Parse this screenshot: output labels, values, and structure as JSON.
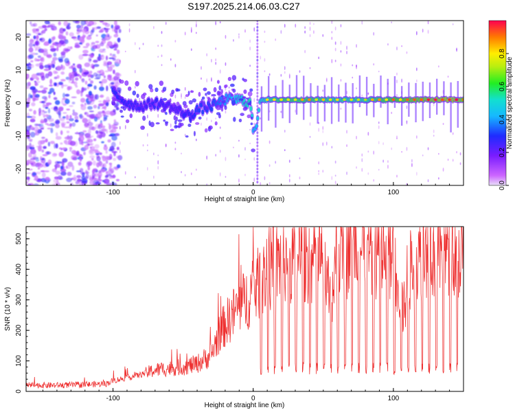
{
  "page": {
    "title": "S197.2025.214.06.03.C27"
  },
  "colors": {
    "snr_line": "#ee3030",
    "frame": "#000000"
  },
  "chart_data": [
    {
      "type": "heatmap",
      "title": "S197.2025.214.06.03.C27",
      "xlabel": "Height of straight line (km)",
      "ylabel": "Frequency (Hz)",
      "xlim": [
        -162,
        150
      ],
      "ylim": [
        -25,
        25
      ],
      "xticks": [
        -100,
        0,
        100
      ],
      "yticks": [
        -20,
        -10,
        0,
        10,
        20
      ],
      "colorbar": {
        "label": "Normalized spectral amplitude",
        "range": [
          0,
          1
        ],
        "ticks": [
          0.0,
          0.2,
          0.4,
          0.6,
          0.8
        ],
        "colormap": "rainbow (magenta-blue-cyan-green-yellow-red)"
      },
      "ridge": {
        "description": "dominant spectral ridge (frequency vs height)",
        "x": [
          -100,
          -90,
          -80,
          -70,
          -60,
          -50,
          -45,
          -40,
          -30,
          -20,
          -10,
          -2,
          0,
          2,
          5,
          20,
          40,
          60,
          80,
          100,
          120,
          140,
          150
        ],
        "y": [
          3,
          0,
          -1,
          0,
          -1,
          -3,
          -4,
          -2,
          -1,
          1,
          1,
          0,
          -8,
          -8,
          1,
          1,
          1,
          1,
          1,
          1,
          1,
          1,
          1
        ],
        "amplitude": [
          0.45,
          0.4,
          0.35,
          0.4,
          0.35,
          0.35,
          0.4,
          0.45,
          0.45,
          0.55,
          0.65,
          0.75,
          0.6,
          0.6,
          0.7,
          0.8,
          0.8,
          0.75,
          0.75,
          0.85,
          0.9,
          0.95,
          0.9
        ]
      }
    },
    {
      "type": "line",
      "title": "",
      "xlabel": "Height of straight line (km)",
      "ylabel": "SNR (10 * v/v)",
      "xlim": [
        -162,
        150
      ],
      "ylim": [
        0,
        540
      ],
      "xticks": [
        -100,
        0,
        100
      ],
      "yticks": [
        0,
        100,
        200,
        300,
        400,
        500
      ],
      "series": [
        {
          "x": [
            -162,
            -140,
            -120,
            -105,
            -100,
            -90,
            -80,
            -70,
            -60,
            -50,
            -40,
            -30,
            -25,
            -20,
            -15,
            -10,
            -5,
            0,
            5,
            10,
            20,
            30,
            40,
            50,
            55,
            60,
            70,
            80,
            90,
            100,
            102,
            105,
            108,
            110,
            120,
            130,
            140,
            150
          ],
          "y": [
            20,
            20,
            22,
            25,
            35,
            45,
            55,
            70,
            75,
            80,
            90,
            120,
            180,
            220,
            250,
            280,
            300,
            330,
            360,
            390,
            430,
            440,
            440,
            420,
            300,
            460,
            460,
            460,
            460,
            440,
            350,
            260,
            280,
            380,
            450,
            460,
            460,
            460
          ],
          "dropouts": {
            "description": "periodic drops of SNR to ~75 between x = 5 and x = 150",
            "low_level": 75,
            "spacing_km": 5
          }
        }
      ]
    }
  ]
}
